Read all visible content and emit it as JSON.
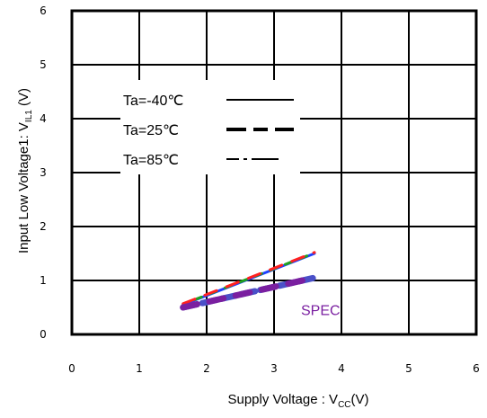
{
  "chart_data": {
    "type": "line",
    "xlabel": "Supply Voltage : V",
    "xlabel_sub": "CC",
    "xlabel_tail": "(V)",
    "ylabel": "Input Low Voltage1: V",
    "ylabel_sub": "IL1",
    "ylabel_tail": " (V)",
    "xlim": [
      0,
      6
    ],
    "ylim": [
      0,
      6
    ],
    "x_ticks": [
      "0",
      "1",
      "2",
      "3",
      "4",
      "5",
      "6"
    ],
    "y_ticks": [
      "0",
      "1",
      "2",
      "3",
      "4",
      "5",
      "6"
    ],
    "grid": true,
    "legend": [
      {
        "label": "Ta=-40℃",
        "style": "solid"
      },
      {
        "label": "Ta=25℃",
        "style": "dashed"
      },
      {
        "label": "Ta=85℃",
        "style": "dashdot"
      }
    ],
    "series": [
      {
        "x": [
          1.65,
          3.6
        ],
        "y": [
          0.55,
          1.5
        ],
        "color": "#1e40ff"
      },
      {
        "x": [
          1.65,
          3.6
        ],
        "y": [
          0.56,
          1.51
        ],
        "color": "#22a020"
      },
      {
        "x": [
          1.65,
          3.6
        ],
        "y": [
          0.57,
          1.52
        ],
        "color": "#ff2020"
      },
      {
        "x": [
          1.65,
          3.6
        ],
        "y": [
          0.5,
          1.05
        ],
        "color": "#4a50c8"
      },
      {
        "x": [
          1.65,
          3.6
        ],
        "y": [
          0.5,
          1.05
        ],
        "color": "#7a1fa0"
      }
    ],
    "annotations": [
      {
        "text": "SPEC",
        "color": "#7a1fa0"
      }
    ]
  }
}
